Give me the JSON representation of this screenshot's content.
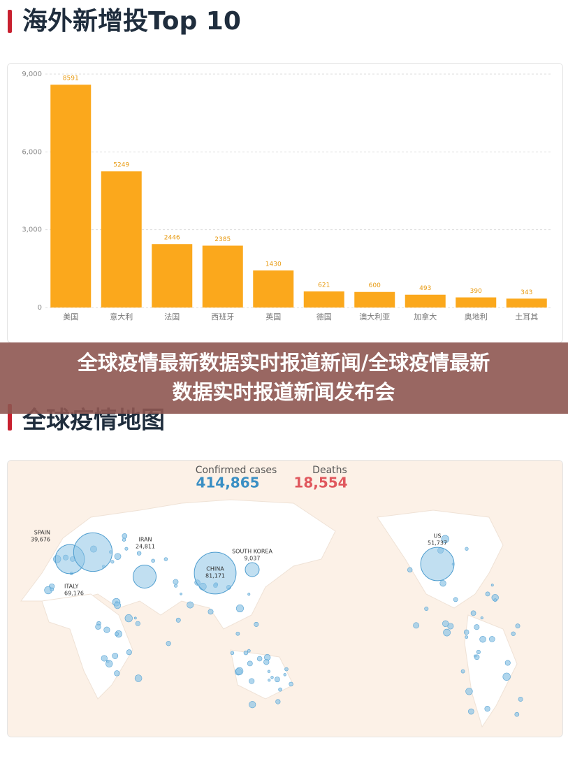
{
  "header_title": "海外新增投Top 10",
  "chart_data": {
    "type": "bar",
    "categories": [
      "美国",
      "意大利",
      "法国",
      "西班牙",
      "英国",
      "德国",
      "澳大利亚",
      "加拿大",
      "奥地利",
      "土耳其"
    ],
    "values": [
      8591,
      5249,
      2446,
      2385,
      1430,
      621,
      600,
      493,
      390,
      343
    ],
    "color": "#fba81c",
    "ylim": [
      0,
      9000
    ],
    "yticks": [
      0,
      {
        "value": 3000,
        "label": "3,000"
      },
      {
        "value": 6000,
        "label": "6,000"
      },
      {
        "value": 9000,
        "label": "9,000"
      }
    ],
    "grid": true
  },
  "banner": [
    "全球疫情最新数据实时报道新闻/全球疫情最新",
    "数据实时报道新闻发布会"
  ],
  "map_title": "全球疫情地图",
  "map": {
    "confirmed_label": "Confirmed cases",
    "confirmed": "414,865",
    "deaths_label": "Deaths",
    "deaths": "18,554",
    "points": [
      {
        "name": "SPAIN",
        "value": 39676,
        "label": "39,676"
      },
      {
        "name": "ITALY",
        "value": 69176,
        "label": "69,176"
      },
      {
        "name": "IRAN",
        "value": 24811,
        "label": "24,811"
      },
      {
        "name": "SOUTH KOREA",
        "value": 9037,
        "label": "9,037"
      },
      {
        "name": "CHINA",
        "value": 81171,
        "label": "81,171"
      },
      {
        "name": "US",
        "value": 51737,
        "label": "51,737"
      }
    ]
  }
}
